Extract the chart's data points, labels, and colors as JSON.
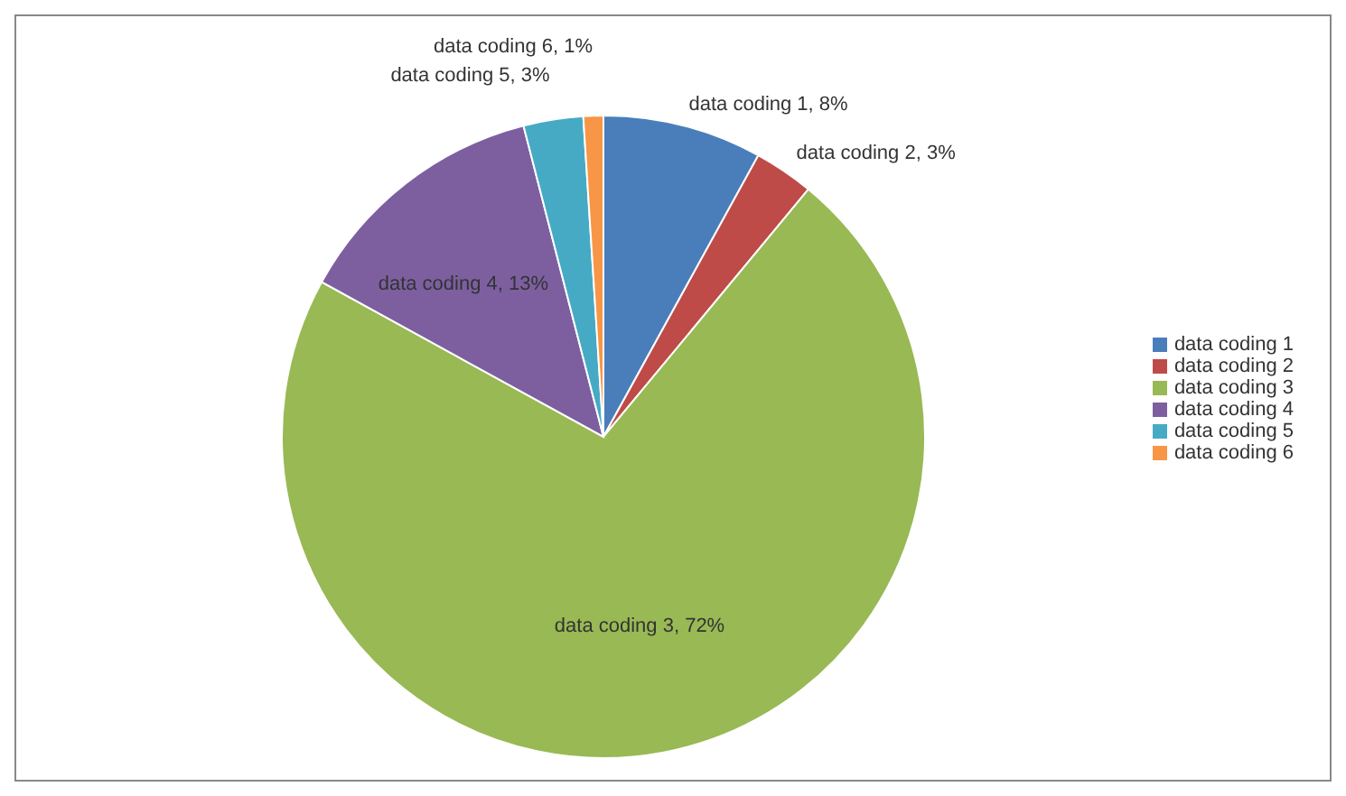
{
  "chart_data": {
    "type": "pie",
    "categories": [
      "data coding 1",
      "data coding 2",
      "data coding 3",
      "data coding 4",
      "data coding 5",
      "data coding 6"
    ],
    "values": [
      8,
      3,
      72,
      13,
      3,
      1
    ],
    "colors": [
      "#4a7ebb",
      "#be4b48",
      "#98b954",
      "#7d5fa0",
      "#46aac5",
      "#f79646"
    ],
    "value_labels": [
      "data coding 1, 8%",
      "data coding 2, 3%",
      "data coding 3, 72%",
      "data coding 4, 13%",
      "data coding 5, 3%",
      "data coding 6, 1%"
    ],
    "legend": "right"
  }
}
